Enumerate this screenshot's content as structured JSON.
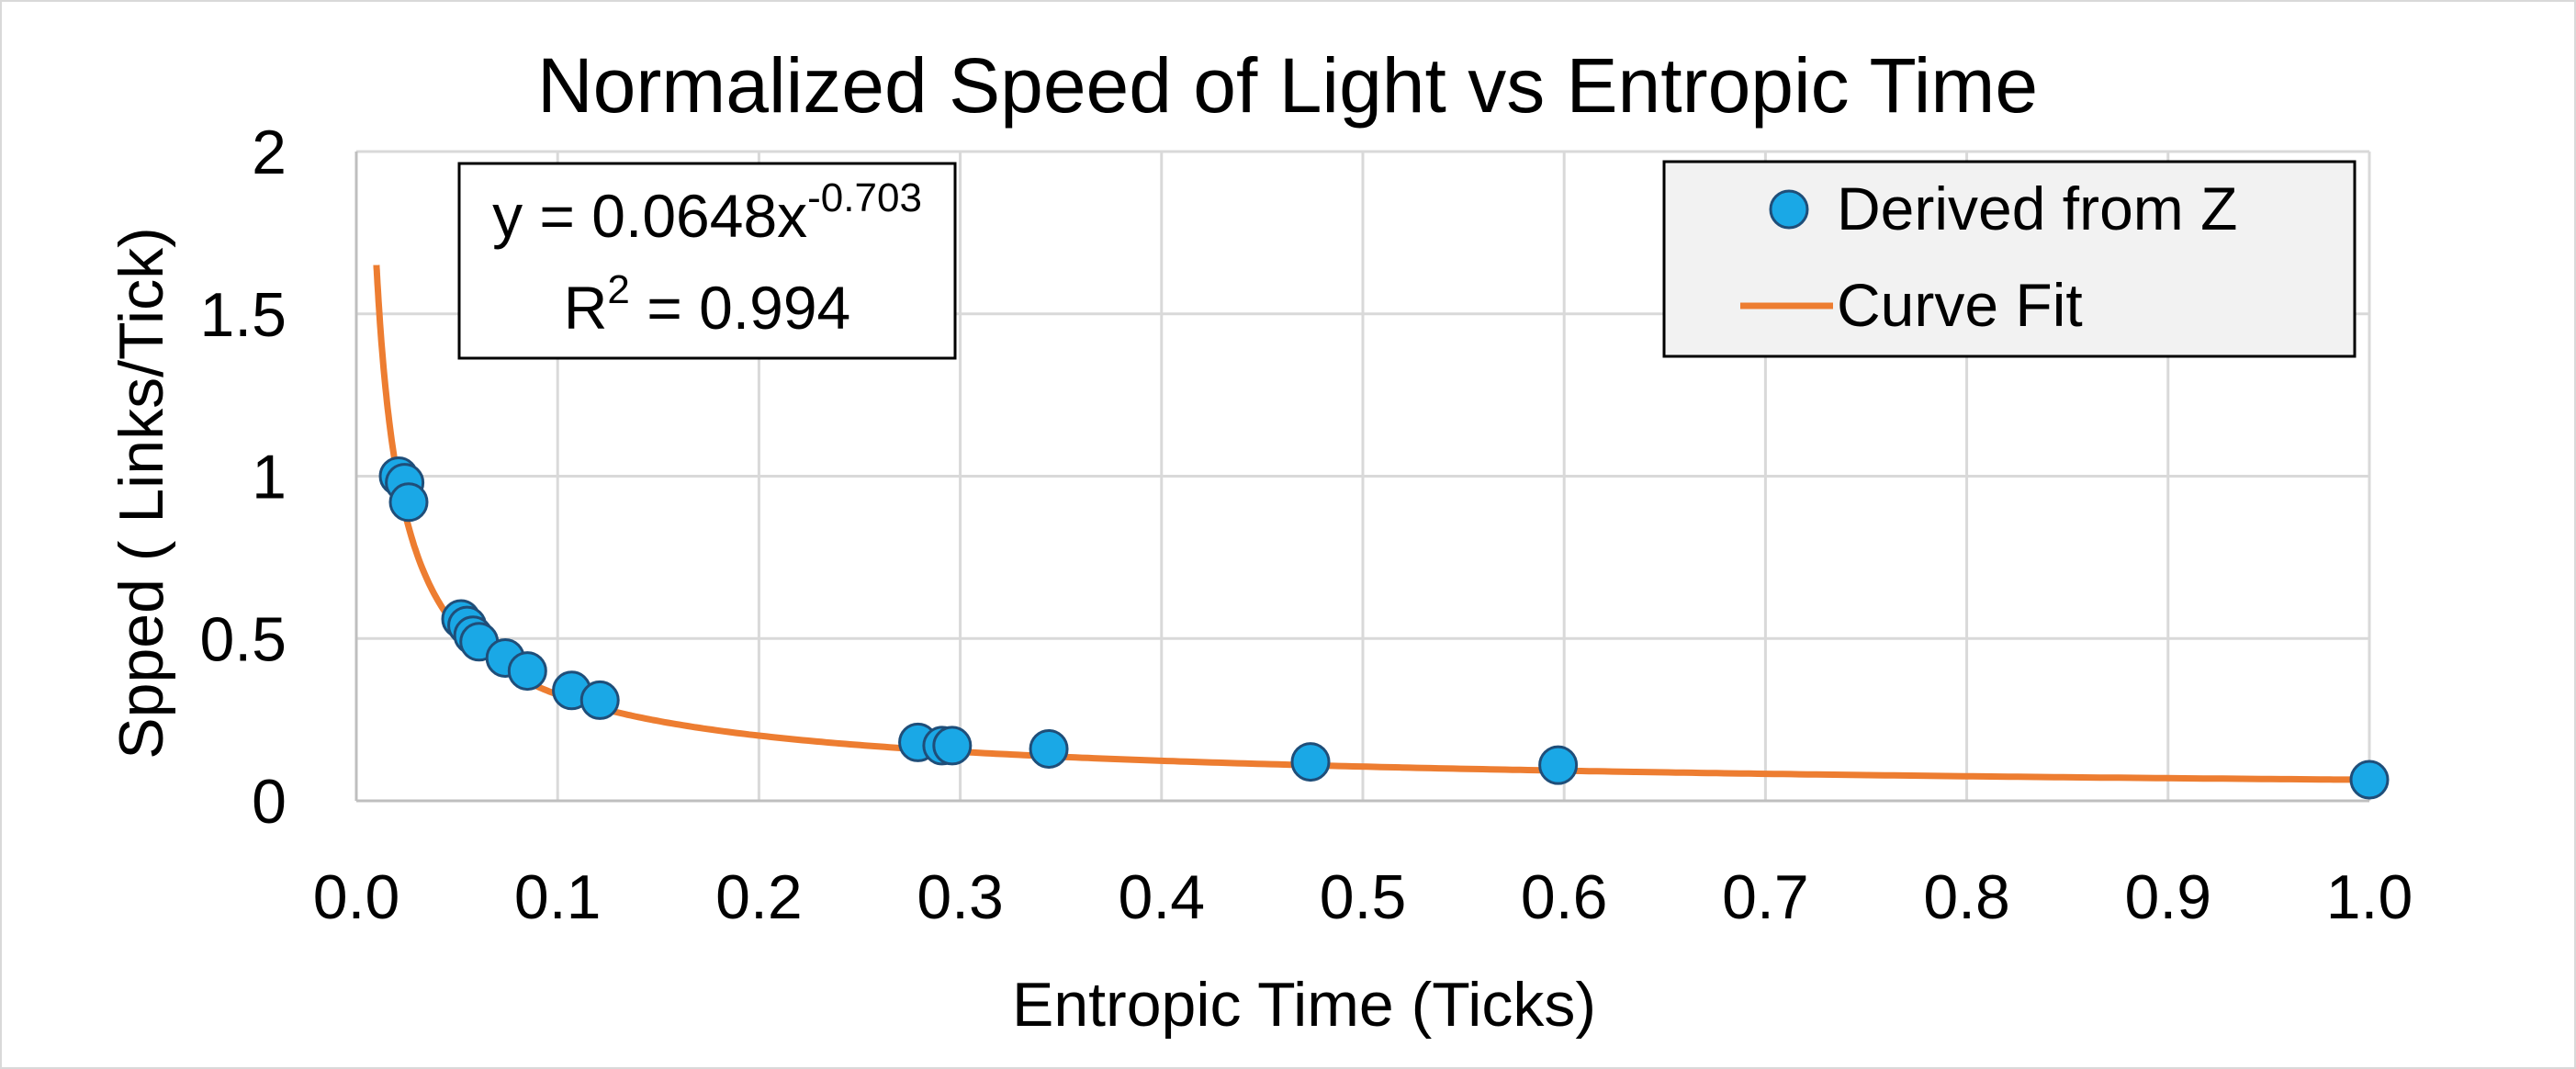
{
  "chart_data": {
    "type": "scatter",
    "title": "Normalized Speed of Light vs Entropic Time",
    "xlabel": "Entropic Time (Ticks)",
    "ylabel": "Spped ( Links/Tick)",
    "xlim": [
      0.0,
      1.0
    ],
    "ylim": [
      0,
      2
    ],
    "x_ticks": [
      0.0,
      0.1,
      0.2,
      0.3,
      0.4,
      0.5,
      0.6,
      0.7,
      0.8,
      0.9,
      1.0
    ],
    "x_tick_labels": [
      "0.0",
      "0.1",
      "0.2",
      "0.3",
      "0.4",
      "0.5",
      "0.6",
      "0.7",
      "0.8",
      "0.9",
      "1.0"
    ],
    "y_ticks": [
      0,
      0.5,
      1,
      1.5,
      2
    ],
    "y_tick_labels": [
      "0",
      "0.5",
      "1",
      "1.5",
      "2"
    ],
    "grid": true,
    "legend_position": "top-right",
    "series": [
      {
        "name": "Derived from Z",
        "kind": "scatter",
        "color": "#1aa8e6",
        "edge_color": "#1f4e79",
        "x": [
          0.021,
          0.024,
          0.026,
          0.052,
          0.055,
          0.058,
          0.061,
          0.074,
          0.085,
          0.107,
          0.121,
          0.279,
          0.291,
          0.296,
          0.344,
          0.474,
          0.597,
          1.0
        ],
        "y": [
          1.0,
          0.98,
          0.92,
          0.56,
          0.54,
          0.51,
          0.49,
          0.44,
          0.4,
          0.34,
          0.31,
          0.18,
          0.17,
          0.17,
          0.16,
          0.12,
          0.11,
          0.065
        ]
      },
      {
        "name": "Curve Fit",
        "kind": "power-fit",
        "color": "#ed7d31",
        "coefficient": 0.0648,
        "exponent": -0.703,
        "x_start": 0.01,
        "x_end": 1.0
      }
    ],
    "annotation": {
      "eq_prefix": "y = 0.0648x",
      "eq_exponent": "-0.703",
      "r2_prefix": "R",
      "r2_exponent": "2",
      "r2_suffix": " = 0.994"
    }
  },
  "colors": {
    "grid": "#d9d9d9",
    "axis": "#bfbfbf",
    "legend_bg": "#f2f2f2"
  }
}
